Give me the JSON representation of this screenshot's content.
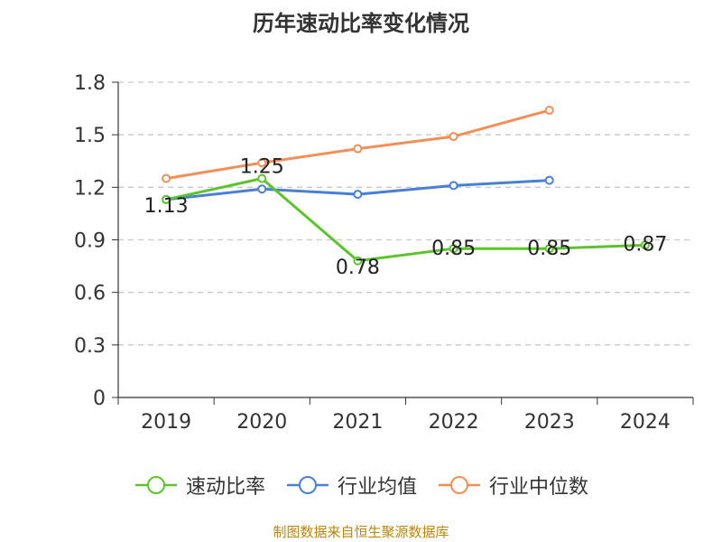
{
  "chart_data": {
    "type": "line",
    "title": "历年速动比率变化情况",
    "categories": [
      "2019",
      "2020",
      "2021",
      "2022",
      "2023",
      "2024"
    ],
    "ylim": [
      0,
      1.8
    ],
    "yticks": [
      "0",
      "0.3",
      "0.6",
      "0.9",
      "1.2",
      "1.5",
      "1.8"
    ],
    "grid": true,
    "legend_position": "bottom",
    "series": [
      {
        "name": "速动比率",
        "color": "#5cc42b",
        "values": [
          1.13,
          1.25,
          0.78,
          0.85,
          0.85,
          0.87
        ],
        "labels": [
          "1.13",
          "1.25",
          "0.78",
          "0.85",
          "0.85",
          "0.87"
        ]
      },
      {
        "name": "行业均值",
        "color": "#4a7fd9",
        "values": [
          1.13,
          1.19,
          1.16,
          1.21,
          1.24,
          null
        ]
      },
      {
        "name": "行业中位数",
        "color": "#f28e56",
        "values": [
          1.25,
          1.34,
          1.42,
          1.49,
          1.64,
          null
        ]
      }
    ]
  },
  "source_note": "制图数据来自恒生聚源数据库"
}
